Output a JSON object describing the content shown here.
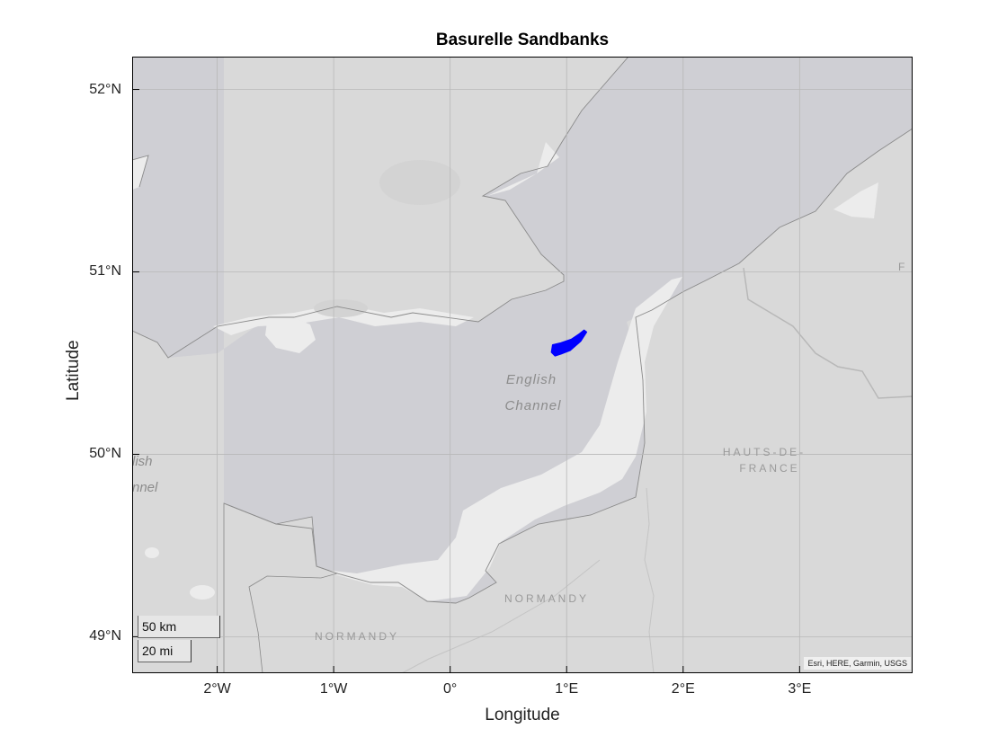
{
  "title": "Basurelle Sandbanks",
  "axes": {
    "xlabel": "Longitude",
    "ylabel": "Latitude",
    "xticks": [
      {
        "lon": -2,
        "label": "2°W"
      },
      {
        "lon": -1,
        "label": "1°W"
      },
      {
        "lon": 0,
        "label": "0°"
      },
      {
        "lon": 1,
        "label": "1°E"
      },
      {
        "lon": 2,
        "label": "2°E"
      },
      {
        "lon": 3,
        "label": "3°E"
      }
    ],
    "yticks": [
      {
        "lat": 52,
        "label": "52°N"
      },
      {
        "lat": 51,
        "label": "51°N"
      },
      {
        "lat": 50,
        "label": "50°N"
      },
      {
        "lat": 49,
        "label": "49°N"
      }
    ],
    "lon_range": [
      -2.73,
      3.97
    ],
    "lat_range": [
      48.8,
      52.18
    ],
    "grid": true
  },
  "map_labels": {
    "sea_line1": "English",
    "sea_line2": "Channel",
    "sea_left_line1": "lish",
    "sea_left_line2": "nnel",
    "region_hauts_line1": "HAUTS-DE-",
    "region_hauts_line2": "FRANCE",
    "region_normandy_east": "NORMANDY",
    "region_normandy_west": "NORMANDY",
    "edge_label": "F"
  },
  "scalebar": {
    "km_label": "50 km",
    "mi_label": "20 mi"
  },
  "attribution": "Esri, HERE, Garmin, USGS",
  "feature": {
    "name": "Basurelle Sandbanks",
    "color": "#0000ff",
    "polygon_lonlat": [
      [
        0.88,
        50.6
      ],
      [
        0.95,
        50.61
      ],
      [
        1.04,
        50.63
      ],
      [
        1.11,
        50.66
      ],
      [
        1.15,
        50.68
      ],
      [
        1.17,
        50.67
      ],
      [
        1.12,
        50.62
      ],
      [
        1.03,
        50.57
      ],
      [
        0.95,
        50.55
      ],
      [
        0.9,
        50.54
      ],
      [
        0.87,
        50.56
      ]
    ]
  },
  "colors": {
    "land": "#d9d9d9",
    "sea": "#cfcfd4",
    "shoal": "#ececec",
    "grid": "#b8b8b8",
    "frame": "#000000"
  }
}
